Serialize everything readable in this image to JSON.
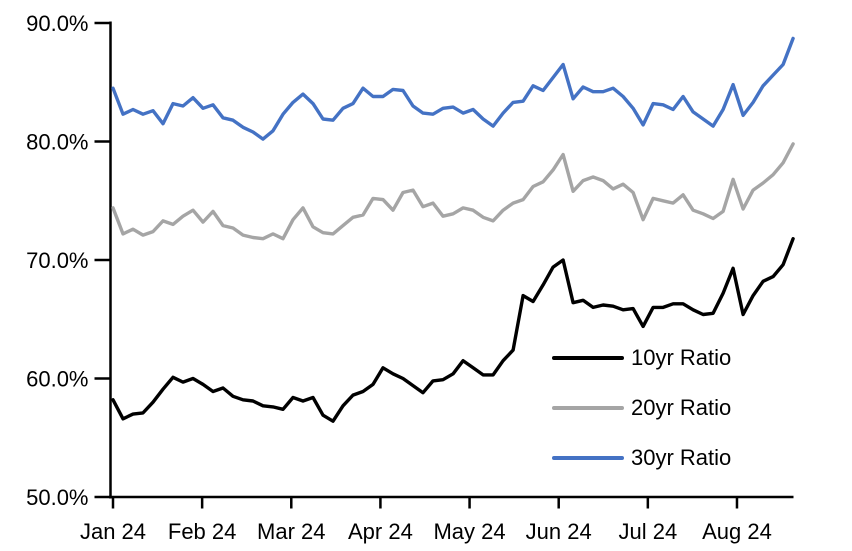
{
  "chart_data": {
    "type": "line",
    "title": "",
    "x_axis": {
      "label": "",
      "tick_labels": [
        "Jan 24",
        "Feb 24",
        "Mar 24",
        "Apr 24",
        "May 24",
        "Jun 24",
        "Jul 24",
        "Aug 24"
      ],
      "tick_months": [
        0,
        1,
        2,
        3,
        4,
        5,
        6,
        7
      ]
    },
    "y_axis": {
      "label": "",
      "tick_labels": [
        "50.0%",
        "60.0%",
        "70.0%",
        "80.0%",
        "90.0%"
      ],
      "min": 50,
      "max": 90,
      "tick_step": 10,
      "format": "percent_one_decimal"
    },
    "grid": false,
    "legend": {
      "position": "inside-bottom-right"
    },
    "x_sampling": {
      "start_month": 0,
      "step_month": 0.1122,
      "count": 69
    },
    "series": [
      {
        "name": "10yr Ratio",
        "color": "#000000",
        "values": [
          58.2,
          56.6,
          57.0,
          57.1,
          58.0,
          59.1,
          60.1,
          59.7,
          60.0,
          59.5,
          58.9,
          59.2,
          58.5,
          58.2,
          58.1,
          57.7,
          57.6,
          57.4,
          58.4,
          58.1,
          58.4,
          56.9,
          56.4,
          57.7,
          58.6,
          58.9,
          59.5,
          60.9,
          60.4,
          60.0,
          59.4,
          58.8,
          59.8,
          59.9,
          60.4,
          61.5,
          60.9,
          60.3,
          60.3,
          61.5,
          62.4,
          67.0,
          66.5,
          67.9,
          69.4,
          70.0,
          66.4,
          66.6,
          66.0,
          66.2,
          66.1,
          65.8,
          65.9,
          64.4,
          66.0,
          66.0,
          66.3,
          66.3,
          65.8,
          65.4,
          65.5,
          67.2,
          69.3,
          65.4,
          67.0,
          68.2,
          68.6,
          69.6,
          71.8
        ]
      },
      {
        "name": "20yr Ratio",
        "color": "#A5A5A5",
        "values": [
          74.4,
          72.2,
          72.6,
          72.1,
          72.4,
          73.3,
          73.0,
          73.7,
          74.2,
          73.2,
          74.1,
          72.9,
          72.7,
          72.1,
          71.9,
          71.8,
          72.2,
          71.8,
          73.4,
          74.4,
          72.8,
          72.3,
          72.2,
          72.9,
          73.6,
          73.8,
          75.2,
          75.1,
          74.2,
          75.7,
          75.9,
          74.5,
          74.8,
          73.7,
          73.9,
          74.4,
          74.2,
          73.6,
          73.3,
          74.2,
          74.8,
          75.1,
          76.2,
          76.6,
          77.6,
          78.9,
          75.8,
          76.7,
          77.0,
          76.7,
          76.0,
          76.4,
          75.7,
          73.4,
          75.2,
          75.0,
          74.8,
          75.5,
          74.2,
          73.9,
          73.5,
          74.1,
          76.8,
          74.3,
          75.9,
          76.5,
          77.2,
          78.2,
          79.8
        ]
      },
      {
        "name": "30yr Ratio",
        "color": "#4472C4",
        "values": [
          84.5,
          82.3,
          82.7,
          82.3,
          82.6,
          81.5,
          83.2,
          83.0,
          83.7,
          82.8,
          83.1,
          82.0,
          81.8,
          81.2,
          80.8,
          80.2,
          80.9,
          82.3,
          83.3,
          84.0,
          83.2,
          81.9,
          81.8,
          82.8,
          83.2,
          84.5,
          83.8,
          83.8,
          84.4,
          84.3,
          83.0,
          82.4,
          82.3,
          82.8,
          82.9,
          82.4,
          82.7,
          81.9,
          81.3,
          82.4,
          83.3,
          83.4,
          84.7,
          84.3,
          85.4,
          86.5,
          83.6,
          84.6,
          84.2,
          84.2,
          84.5,
          83.8,
          82.8,
          81.4,
          83.2,
          83.1,
          82.7,
          83.8,
          82.5,
          81.9,
          81.3,
          82.7,
          84.8,
          82.2,
          83.3,
          84.7,
          85.6,
          86.5,
          88.7
        ]
      }
    ]
  }
}
